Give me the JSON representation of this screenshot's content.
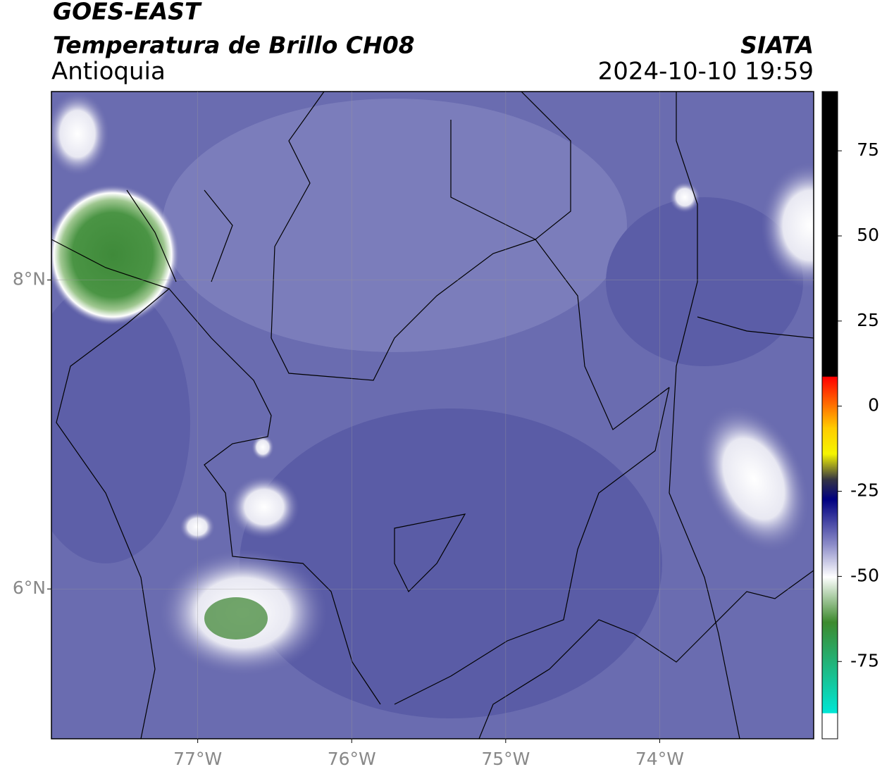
{
  "header": {
    "satellite": "GOES-EAST",
    "product": "Temperatura de Brillo CH08",
    "region": "Antioquia",
    "source": "SIATA",
    "datetime": "2024-10-10 19:59"
  },
  "map": {
    "lonlim": [
      -77.95,
      -73.0
    ],
    "latlim": [
      5.03,
      9.22
    ],
    "lon_ticks": [
      {
        "value": -77,
        "label": "77°W"
      },
      {
        "value": -76,
        "label": "76°W"
      },
      {
        "value": -75,
        "label": "75°W"
      },
      {
        "value": -74,
        "label": "74°W"
      }
    ],
    "lat_ticks": [
      {
        "value": 8,
        "label": "8°N"
      },
      {
        "value": 6,
        "label": "6°N"
      }
    ]
  },
  "colorbar": {
    "lim": [
      -97.7,
      92.4
    ],
    "ticks": [
      75,
      50,
      25,
      0,
      -25,
      -50,
      -75
    ]
  }
}
